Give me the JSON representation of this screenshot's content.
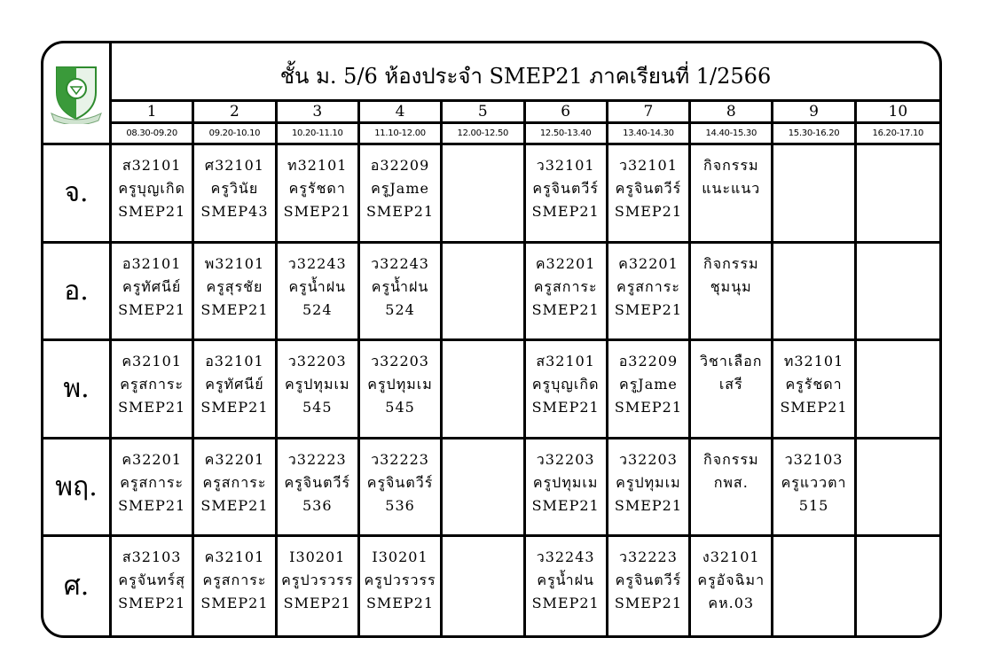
{
  "title": "ชั้น ม. 5/6 ห้องประจำ SMEP21 ภาคเรียนที่ 1/2566",
  "logo": {
    "icon": "school-crest-logo",
    "color": "#2e8b2e"
  },
  "periods": [
    {
      "num": "1",
      "time": "08.30-09.20"
    },
    {
      "num": "2",
      "time": "09.20-10.10"
    },
    {
      "num": "3",
      "time": "10.20-11.10"
    },
    {
      "num": "4",
      "time": "11.10-12.00"
    },
    {
      "num": "5",
      "time": "12.00-12.50"
    },
    {
      "num": "6",
      "time": "12.50-13.40"
    },
    {
      "num": "7",
      "time": "13.40-14.30"
    },
    {
      "num": "8",
      "time": "14.40-15.30"
    },
    {
      "num": "9",
      "time": "15.30-16.20"
    },
    {
      "num": "10",
      "time": "16.20-17.10"
    }
  ],
  "days": [
    {
      "label": "จ.",
      "cells": [
        [
          "ส32101",
          "ครูบุญเกิด",
          "SMEP21"
        ],
        [
          "ศ32101",
          "ครูวินัย",
          "SMEP43"
        ],
        [
          "ท32101",
          "ครูรัชดา",
          "SMEP21"
        ],
        [
          "อ32209",
          "ครูJame",
          "SMEP21"
        ],
        [],
        [
          "ว32101",
          "ครูจินตวีร์",
          "SMEP21"
        ],
        [
          "ว32101",
          "ครูจินตวีร์",
          "SMEP21"
        ],
        [
          "กิจกรรม",
          "แนะแนว"
        ],
        [],
        []
      ]
    },
    {
      "label": "อ.",
      "cells": [
        [
          "อ32101",
          "ครูทัศนีย์",
          "SMEP21"
        ],
        [
          "พ32101",
          "ครูสุรชัย",
          "SMEP21"
        ],
        [
          "ว32243",
          "ครูน้ำฝน",
          "524"
        ],
        [
          "ว32243",
          "ครูน้ำฝน",
          "524"
        ],
        [],
        [
          "ค32201",
          "ครูสการะ",
          "SMEP21"
        ],
        [
          "ค32201",
          "ครูสการะ",
          "SMEP21"
        ],
        [
          "กิจกรรม",
          "ชุมนุม"
        ],
        [],
        []
      ]
    },
    {
      "label": "พ.",
      "cells": [
        [
          "ค32101",
          "ครูสการะ",
          "SMEP21"
        ],
        [
          "อ32101",
          "ครูทัศนีย์",
          "SMEP21"
        ],
        [
          "ว32203",
          "ครูปทุมเม",
          "545"
        ],
        [
          "ว32203",
          "ครูปทุมเม",
          "545"
        ],
        [],
        [
          "ส32101",
          "ครูบุญเกิด",
          "SMEP21"
        ],
        [
          "อ32209",
          "ครูJame",
          "SMEP21"
        ],
        [
          "วิชาเลือก",
          "เสรี"
        ],
        [
          "ท32101",
          "ครูรัชดา",
          "SMEP21"
        ],
        []
      ]
    },
    {
      "label": "พฤ.",
      "cells": [
        [
          "ค32201",
          "ครูสการะ",
          "SMEP21"
        ],
        [
          "ค32201",
          "ครูสการะ",
          "SMEP21"
        ],
        [
          "ว32223",
          "ครูจินตวีร์",
          "536"
        ],
        [
          "ว32223",
          "ครูจินตวีร์",
          "536"
        ],
        [],
        [
          "ว32203",
          "ครูปทุมเม",
          "SMEP21"
        ],
        [
          "ว32203",
          "ครูปทุมเม",
          "SMEP21"
        ],
        [
          "กิจกรรม",
          "กพส."
        ],
        [
          "ว32103",
          "ครูแววตา",
          "515"
        ],
        []
      ]
    },
    {
      "label": "ศ.",
      "cells": [
        [
          "ส32103",
          "ครูจันทร์สุ",
          "SMEP21"
        ],
        [
          "ค32101",
          "ครูสการะ",
          "SMEP21"
        ],
        [
          "I30201",
          "ครูปวรวรร",
          "SMEP21"
        ],
        [
          "I30201",
          "ครูปวรวรร",
          "SMEP21"
        ],
        [],
        [
          "ว32243",
          "ครูน้ำฝน",
          "SMEP21"
        ],
        [
          "ว32223",
          "ครูจินตวีร์",
          "SMEP21"
        ],
        [
          "ง32101",
          "ครูอัจฉิมา",
          "คห.03"
        ],
        [],
        []
      ]
    }
  ]
}
